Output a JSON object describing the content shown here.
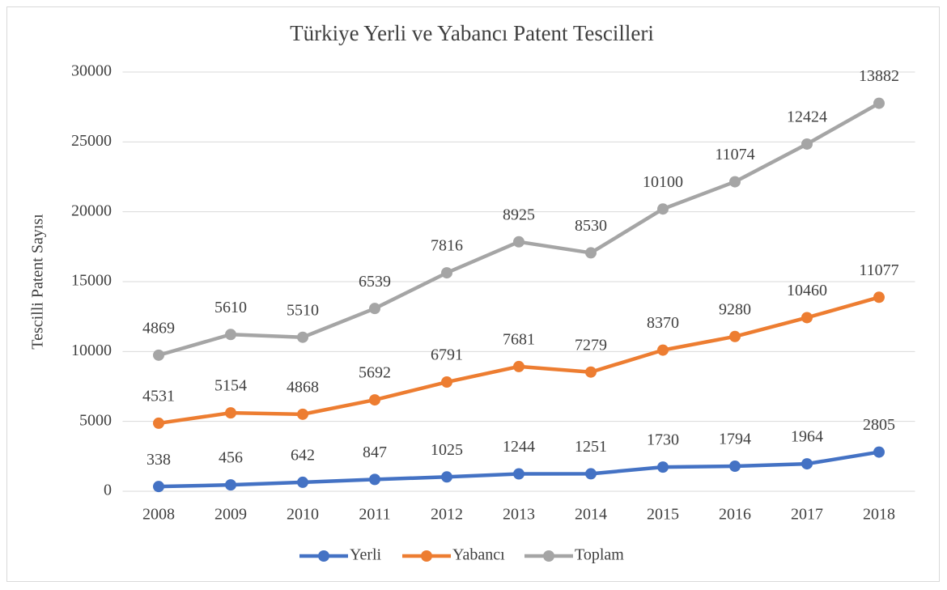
{
  "chart_data": {
    "type": "line",
    "stacked": true,
    "title": "Türkiye Yerli ve Yabancı Patent Tescilleri",
    "y_label": "Tescilli Patent Sayısı",
    "categories": [
      "2008",
      "2009",
      "2010",
      "2011",
      "2012",
      "2013",
      "2014",
      "2015",
      "2016",
      "2017",
      "2018"
    ],
    "series": [
      {
        "name": "Yerli",
        "color": "#4472c4",
        "values": [
          338,
          456,
          642,
          847,
          1025,
          1244,
          1251,
          1730,
          1794,
          1964,
          2805
        ]
      },
      {
        "name": "Yabancı",
        "color": "#ed7d31",
        "values": [
          4531,
          5154,
          4868,
          5692,
          6791,
          7681,
          7279,
          8370,
          9280,
          10460,
          11077
        ]
      },
      {
        "name": "Toplam",
        "color": "#a5a5a5",
        "values": [
          4869,
          5610,
          5510,
          6539,
          7816,
          8925,
          8530,
          10100,
          11074,
          12424,
          13882
        ]
      }
    ],
    "ylim": [
      0,
      30000
    ],
    "yticks": [
      0,
      5000,
      10000,
      15000,
      20000,
      25000,
      30000
    ],
    "grid": true,
    "legend": "bottom"
  }
}
